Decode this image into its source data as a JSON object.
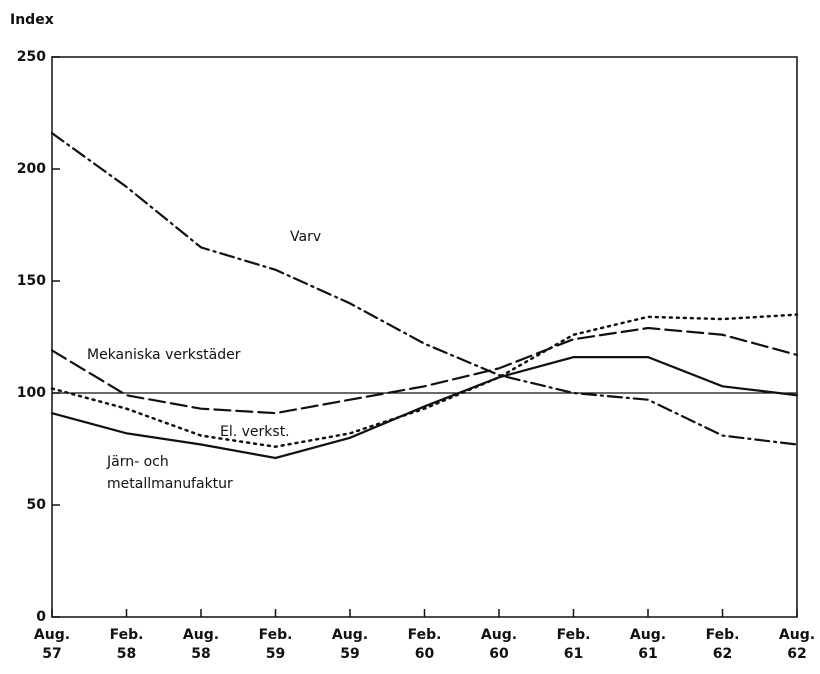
{
  "chart_data": {
    "type": "line",
    "y_label": "Index",
    "categories": [
      "Aug. 57",
      "Feb. 58",
      "Aug. 58",
      "Feb. 59",
      "Aug. 59",
      "Feb. 60",
      "Aug. 60",
      "Feb. 61",
      "Aug. 61",
      "Feb. 62",
      "Aug. 62"
    ],
    "series": [
      {
        "name": "Varv",
        "color": "#111111",
        "dash": "dashdot",
        "values": [
          216,
          192,
          165,
          155,
          140,
          122,
          108,
          100,
          97,
          81,
          77
        ]
      },
      {
        "name": "Mekaniska verkstäder",
        "color": "#111111",
        "dash": "dashed",
        "values": [
          119,
          99,
          93,
          91,
          97,
          103,
          111,
          124,
          129,
          126,
          117
        ]
      },
      {
        "name": "El. verkst.",
        "color": "#111111",
        "dash": "dotted",
        "values": [
          102,
          93,
          81,
          76,
          82,
          93,
          107,
          126,
          134,
          133,
          135
        ]
      },
      {
        "name": "Järn- och metallmanufaktur",
        "color": "#111111",
        "dash": "solid",
        "values": [
          91,
          82,
          77,
          71,
          80,
          94,
          107,
          116,
          116,
          103,
          99
        ]
      }
    ],
    "reference_line": 100,
    "ylim": [
      0,
      250
    ],
    "yticks": [
      0,
      50,
      100,
      150,
      200,
      250
    ],
    "grid": false
  }
}
